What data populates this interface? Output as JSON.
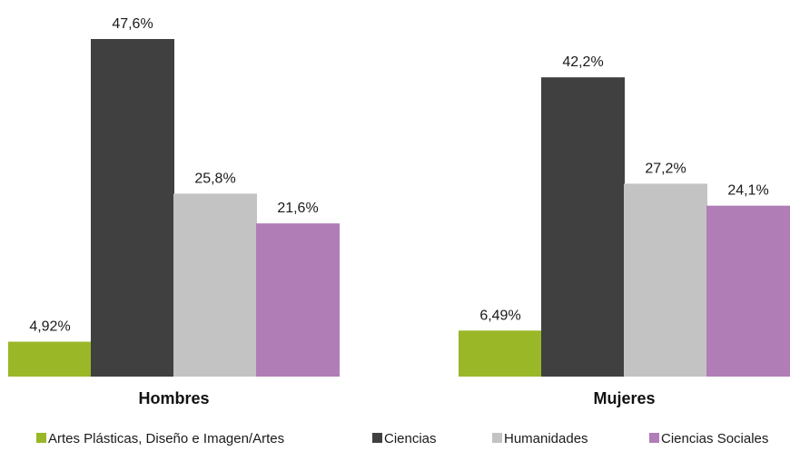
{
  "chart_data": {
    "type": "bar",
    "categories": [
      "Hombres",
      "Mujeres"
    ],
    "series": [
      {
        "name": "Artes Plásticas, Diseño e Imagen/Artes",
        "color": "#9ab728",
        "values": [
          4.92,
          6.49
        ],
        "labels": [
          "4,92%",
          "6,49%"
        ]
      },
      {
        "name": "Ciencias",
        "color": "#404040",
        "values": [
          47.6,
          42.2
        ],
        "labels": [
          "47,6%",
          "42,2%"
        ]
      },
      {
        "name": "Humanidades",
        "color": "#c3c3c3",
        "values": [
          25.8,
          27.2
        ],
        "labels": [
          "25,8%",
          "27,2%"
        ]
      },
      {
        "name": "Ciencias Sociales",
        "color": "#b07db6",
        "values": [
          21.6,
          24.1
        ],
        "labels": [
          "21,6%",
          "24,1%"
        ]
      }
    ],
    "ylim": [
      0,
      50
    ],
    "legend_position": "bottom",
    "grid": false
  }
}
